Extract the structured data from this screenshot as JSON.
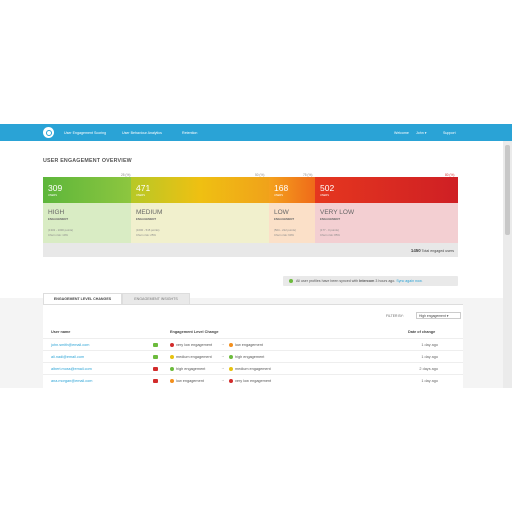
{
  "colors": {
    "accent": "#2aa3d6",
    "high": "#6cbb3c",
    "medium_bar": "#e7c20f",
    "low_bar": "#f38f1c",
    "verylow_bar": "#d22b2b"
  },
  "topbar": {
    "logo_icon": "intercom-circle-logo",
    "nav": [
      "User Engagement Scoring",
      "User Behaviour Analytics",
      "Retention"
    ],
    "right": [
      "Welcome",
      "John ▾",
      "Support"
    ]
  },
  "overview": {
    "title": "USER ENGAGEMENT OVERVIEW",
    "thresholds": [
      "25 (%)",
      "50 (%)",
      "75 (%)",
      "80 (%)"
    ],
    "segments": [
      {
        "count": "309",
        "unit": "USERS",
        "level": "HIGH",
        "engagement": "ENGAGEMENT",
        "detail1": "(1332 - 1000 points)",
        "detail2": "Churn risk: 10%"
      },
      {
        "count": "471",
        "unit": "USERS",
        "level": "MEDIUM",
        "engagement": "ENGAGEMENT",
        "detail1": "(1000 - 515 points)",
        "detail2": "Churn risk: 25%"
      },
      {
        "count": "168",
        "unit": "USERS",
        "level": "LOW",
        "engagement": "ENGAGEMENT",
        "detail1": "(504 - 212 points)",
        "detail2": "Churn risk: 60%"
      },
      {
        "count": "502",
        "unit": "USERS",
        "level": "VERY LOW",
        "engagement": "ENGAGEMENT",
        "detail1": "(177 - 0 points)",
        "detail2": "Churn risk: 85%"
      }
    ],
    "total_number": "1450",
    "total_label": "Total engaged users"
  },
  "sync_notice": {
    "prefix": "All user profiles have been synced with",
    "source": "Intercom",
    "suffix": "3 hours ago.",
    "link": "Sync again now."
  },
  "tabs": [
    "ENGAGEMENT LEVEL CHANGES",
    "ENGAGEMENT INSIGHTS"
  ],
  "filter": {
    "label": "FILTER BY:",
    "value": "High engagement ▾"
  },
  "table": {
    "headers": [
      "User name",
      "Engagement Level Change",
      "Date of change"
    ],
    "rows": [
      {
        "email": "john.smith@email.com",
        "direction": "up",
        "from": "very low engagement",
        "to": "low engagement",
        "date": "1 day ago"
      },
      {
        "email": "ali.nadi@email.com",
        "direction": "up",
        "from": "medium engagement",
        "to": "high engagement",
        "date": "1 day ago"
      },
      {
        "email": "albert.moss@email.com",
        "direction": "down",
        "from": "high engagement",
        "to": "medium engagement",
        "date": "2 days ago"
      },
      {
        "email": "ana.morgan@email.com",
        "direction": "down",
        "from": "low engagement",
        "to": "very low engagement",
        "date": "1 day ago"
      }
    ]
  }
}
